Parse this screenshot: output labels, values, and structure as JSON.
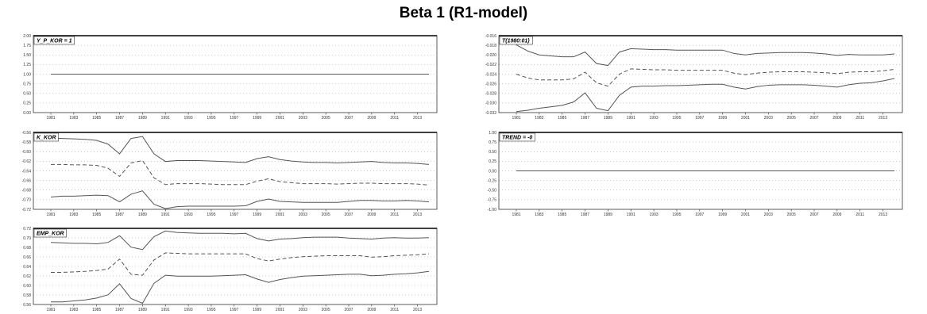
{
  "title": "Beta 1 (R1-model)",
  "colors": {
    "line": "#555555",
    "frame": "#333333",
    "grid": "#9a9a9a",
    "background": "#ffffff"
  },
  "chart_data": [
    {
      "type": "line",
      "label": "Y_P_KOR = 1",
      "x": [
        1981,
        1982,
        1983,
        1984,
        1985,
        1986,
        1987,
        1988,
        1989,
        1990,
        1991,
        1992,
        1993,
        1994,
        1995,
        1996,
        1997,
        1998,
        1999,
        2000,
        2001,
        2002,
        2003,
        2004,
        2005,
        2006,
        2007,
        2008,
        2009,
        2010,
        2011,
        2012,
        2013,
        2014
      ],
      "xticks": [
        1981,
        1983,
        1985,
        1987,
        1989,
        1991,
        1993,
        1995,
        1997,
        1999,
        2001,
        2003,
        2005,
        2007,
        2009,
        2011,
        2013
      ],
      "yticks": [
        "2.00",
        "1.75",
        "1.50",
        "1.25",
        "1.00",
        "0.75",
        "0.50",
        "0.25",
        "0.00"
      ],
      "ylim": [
        0,
        2
      ],
      "grid": true,
      "series": [
        {
          "style": "solid",
          "values": [
            1,
            1,
            1,
            1,
            1,
            1,
            1,
            1,
            1,
            1,
            1,
            1,
            1,
            1,
            1,
            1,
            1,
            1,
            1,
            1,
            1,
            1,
            1,
            1,
            1,
            1,
            1,
            1,
            1,
            1,
            1,
            1,
            1,
            1
          ]
        }
      ]
    },
    {
      "type": "line",
      "label": "T(1980:01)",
      "x": [
        1981,
        1982,
        1983,
        1984,
        1985,
        1986,
        1987,
        1988,
        1989,
        1990,
        1991,
        1992,
        1993,
        1994,
        1995,
        1996,
        1997,
        1998,
        1999,
        2000,
        2001,
        2002,
        2003,
        2004,
        2005,
        2006,
        2007,
        2008,
        2009,
        2010,
        2011,
        2012,
        2013,
        2014
      ],
      "xticks": [
        1981,
        1983,
        1985,
        1987,
        1989,
        1991,
        1993,
        1995,
        1997,
        1999,
        2001,
        2003,
        2005,
        2007,
        2009,
        2011,
        2013
      ],
      "yticks": [
        "-0.016",
        "-0.018",
        "-0.020",
        "-0.022",
        "-0.024",
        "-0.026",
        "-0.028",
        "-0.030",
        "-0.032"
      ],
      "ylim": [
        -0.032,
        -0.016
      ],
      "grid": true,
      "series": [
        {
          "style": "solid",
          "values": [
            -0.0179,
            -0.0192,
            -0.02,
            -0.0202,
            -0.0204,
            -0.0204,
            -0.0194,
            -0.0218,
            -0.0222,
            -0.0194,
            -0.0187,
            -0.0188,
            -0.0189,
            -0.0189,
            -0.019,
            -0.019,
            -0.019,
            -0.019,
            -0.019,
            -0.0197,
            -0.02,
            -0.0197,
            -0.0196,
            -0.0195,
            -0.0195,
            -0.0195,
            -0.0196,
            -0.0198,
            -0.0201,
            -0.0199,
            -0.02,
            -0.02,
            -0.02,
            -0.0198
          ]
        },
        {
          "style": "dashed",
          "values": [
            -0.024,
            -0.0248,
            -0.0252,
            -0.0252,
            -0.0252,
            -0.025,
            -0.0236,
            -0.0258,
            -0.0265,
            -0.024,
            -0.0229,
            -0.023,
            -0.0231,
            -0.0231,
            -0.0232,
            -0.0232,
            -0.0232,
            -0.0232,
            -0.0232,
            -0.0238,
            -0.0241,
            -0.0238,
            -0.0236,
            -0.0235,
            -0.0235,
            -0.0235,
            -0.0236,
            -0.0237,
            -0.0239,
            -0.0236,
            -0.0235,
            -0.0235,
            -0.0233,
            -0.023
          ]
        },
        {
          "style": "solid",
          "values": [
            -0.0318,
            -0.0315,
            -0.0311,
            -0.0308,
            -0.0305,
            -0.0298,
            -0.0279,
            -0.0311,
            -0.0316,
            -0.0284,
            -0.0267,
            -0.0265,
            -0.0265,
            -0.0264,
            -0.0264,
            -0.0263,
            -0.0262,
            -0.0261,
            -0.0261,
            -0.0267,
            -0.0271,
            -0.0266,
            -0.0263,
            -0.0262,
            -0.0262,
            -0.0262,
            -0.0263,
            -0.0265,
            -0.0267,
            -0.0262,
            -0.0259,
            -0.0258,
            -0.0254,
            -0.0249
          ]
        }
      ]
    },
    {
      "type": "line",
      "label": "K_KOR",
      "x": [
        1981,
        1982,
        1983,
        1984,
        1985,
        1986,
        1987,
        1988,
        1989,
        1990,
        1991,
        1992,
        1993,
        1994,
        1995,
        1996,
        1997,
        1998,
        1999,
        2000,
        2001,
        2002,
        2003,
        2004,
        2005,
        2006,
        2007,
        2008,
        2009,
        2010,
        2011,
        2012,
        2013,
        2014
      ],
      "xticks": [
        1981,
        1983,
        1985,
        1987,
        1989,
        1991,
        1993,
        1995,
        1997,
        1999,
        2001,
        2003,
        2005,
        2007,
        2009,
        2011,
        2013
      ],
      "yticks": [
        "-0.56",
        "-0.58",
        "-0.60",
        "-0.62",
        "-0.64",
        "-0.66",
        "-0.68",
        "-0.70",
        "-0.72"
      ],
      "ylim": [
        -0.72,
        -0.56
      ],
      "grid": true,
      "series": [
        {
          "style": "solid",
          "values": [
            -0.5715,
            -0.5725,
            -0.5735,
            -0.5745,
            -0.5765,
            -0.5845,
            -0.6045,
            -0.5725,
            -0.5685,
            -0.6045,
            -0.6205,
            -0.6185,
            -0.6185,
            -0.6185,
            -0.6195,
            -0.6205,
            -0.6215,
            -0.6225,
            -0.6145,
            -0.6105,
            -0.6165,
            -0.6195,
            -0.6215,
            -0.6225,
            -0.6225,
            -0.6235,
            -0.6225,
            -0.6215,
            -0.6205,
            -0.6225,
            -0.6235,
            -0.6235,
            -0.6245,
            -0.6265
          ]
        },
        {
          "style": "dashed",
          "values": [
            -0.6265,
            -0.6265,
            -0.6275,
            -0.6275,
            -0.6285,
            -0.6345,
            -0.6515,
            -0.6235,
            -0.6185,
            -0.6545,
            -0.6685,
            -0.6665,
            -0.6665,
            -0.6665,
            -0.6675,
            -0.6685,
            -0.6685,
            -0.6685,
            -0.6615,
            -0.6565,
            -0.6625,
            -0.6645,
            -0.6665,
            -0.6665,
            -0.6665,
            -0.6675,
            -0.6665,
            -0.6655,
            -0.6655,
            -0.6665,
            -0.6665,
            -0.6665,
            -0.6675,
            -0.6695
          ]
        },
        {
          "style": "solid",
          "values": [
            -0.6945,
            -0.6925,
            -0.6925,
            -0.6915,
            -0.6905,
            -0.6915,
            -0.7045,
            -0.6885,
            -0.6815,
            -0.7095,
            -0.7185,
            -0.7145,
            -0.7135,
            -0.7135,
            -0.7135,
            -0.7135,
            -0.7135,
            -0.7125,
            -0.7035,
            -0.6985,
            -0.7035,
            -0.7045,
            -0.7055,
            -0.7055,
            -0.7055,
            -0.7055,
            -0.7035,
            -0.7015,
            -0.7015,
            -0.7025,
            -0.7025,
            -0.7015,
            -0.7025,
            -0.7045
          ]
        }
      ]
    },
    {
      "type": "line",
      "label": "TREND = -0",
      "x": [
        1981,
        1982,
        1983,
        1984,
        1985,
        1986,
        1987,
        1988,
        1989,
        1990,
        1991,
        1992,
        1993,
        1994,
        1995,
        1996,
        1997,
        1998,
        1999,
        2000,
        2001,
        2002,
        2003,
        2004,
        2005,
        2006,
        2007,
        2008,
        2009,
        2010,
        2011,
        2012,
        2013,
        2014
      ],
      "xticks": [
        1981,
        1983,
        1985,
        1987,
        1989,
        1991,
        1993,
        1995,
        1997,
        1999,
        2001,
        2003,
        2005,
        2007,
        2009,
        2011,
        2013
      ],
      "yticks": [
        "1.00",
        "0.75",
        "0.50",
        "0.25",
        "0.00",
        "-0.25",
        "-0.50",
        "-0.75",
        "-1.00"
      ],
      "ylim": [
        -1,
        1
      ],
      "grid": true,
      "series": [
        {
          "style": "solid",
          "values": [
            0,
            0,
            0,
            0,
            0,
            0,
            0,
            0,
            0,
            0,
            0,
            0,
            0,
            0,
            0,
            0,
            0,
            0,
            0,
            0,
            0,
            0,
            0,
            0,
            0,
            0,
            0,
            0,
            0,
            0,
            0,
            0,
            0,
            0
          ]
        }
      ]
    },
    {
      "type": "line",
      "label": "EMP_KOR",
      "x": [
        1981,
        1982,
        1983,
        1984,
        1985,
        1986,
        1987,
        1988,
        1989,
        1990,
        1991,
        1992,
        1993,
        1994,
        1995,
        1996,
        1997,
        1998,
        1999,
        2000,
        2001,
        2002,
        2003,
        2004,
        2005,
        2006,
        2007,
        2008,
        2009,
        2010,
        2011,
        2012,
        2013,
        2014
      ],
      "xticks": [
        1981,
        1983,
        1985,
        1987,
        1989,
        1991,
        1993,
        1995,
        1997,
        1999,
        2001,
        2003,
        2005,
        2007,
        2009,
        2011,
        2013
      ],
      "yticks": [
        "0.72",
        "0.70",
        "0.68",
        "0.66",
        "0.64",
        "0.62",
        "0.60",
        "0.58",
        "0.56"
      ],
      "ylim": [
        0.56,
        0.72
      ],
      "grid": true,
      "series": [
        {
          "style": "solid",
          "values": [
            0.6905,
            0.6895,
            0.6885,
            0.6885,
            0.6875,
            0.6905,
            0.7045,
            0.6805,
            0.6755,
            0.7025,
            0.7145,
            0.7115,
            0.7105,
            0.7095,
            0.7095,
            0.7095,
            0.7085,
            0.7095,
            0.6985,
            0.6935,
            0.6975,
            0.6985,
            0.7005,
            0.7015,
            0.7015,
            0.7015,
            0.6995,
            0.6985,
            0.6975,
            0.6995,
            0.7005,
            0.6995,
            0.6995,
            0.7005
          ]
        },
        {
          "style": "dashed",
          "values": [
            0.6275,
            0.6275,
            0.6285,
            0.6295,
            0.6315,
            0.6345,
            0.6555,
            0.6235,
            0.6215,
            0.6535,
            0.6685,
            0.6675,
            0.6665,
            0.6665,
            0.6665,
            0.6665,
            0.6665,
            0.6665,
            0.6565,
            0.6515,
            0.6555,
            0.6585,
            0.6605,
            0.6615,
            0.6625,
            0.6625,
            0.6625,
            0.6625,
            0.6595,
            0.6605,
            0.6625,
            0.6635,
            0.6645,
            0.6665
          ]
        },
        {
          "style": "solid",
          "values": [
            0.5655,
            0.5655,
            0.5675,
            0.5695,
            0.5735,
            0.5805,
            0.6035,
            0.5725,
            0.5625,
            0.6045,
            0.6215,
            0.6195,
            0.6195,
            0.6195,
            0.6195,
            0.6205,
            0.6215,
            0.6225,
            0.6135,
            0.6065,
            0.6125,
            0.6165,
            0.6195,
            0.6205,
            0.6215,
            0.6225,
            0.6235,
            0.6235,
            0.6205,
            0.6215,
            0.6235,
            0.6245,
            0.6265,
            0.6295
          ]
        }
      ]
    }
  ]
}
